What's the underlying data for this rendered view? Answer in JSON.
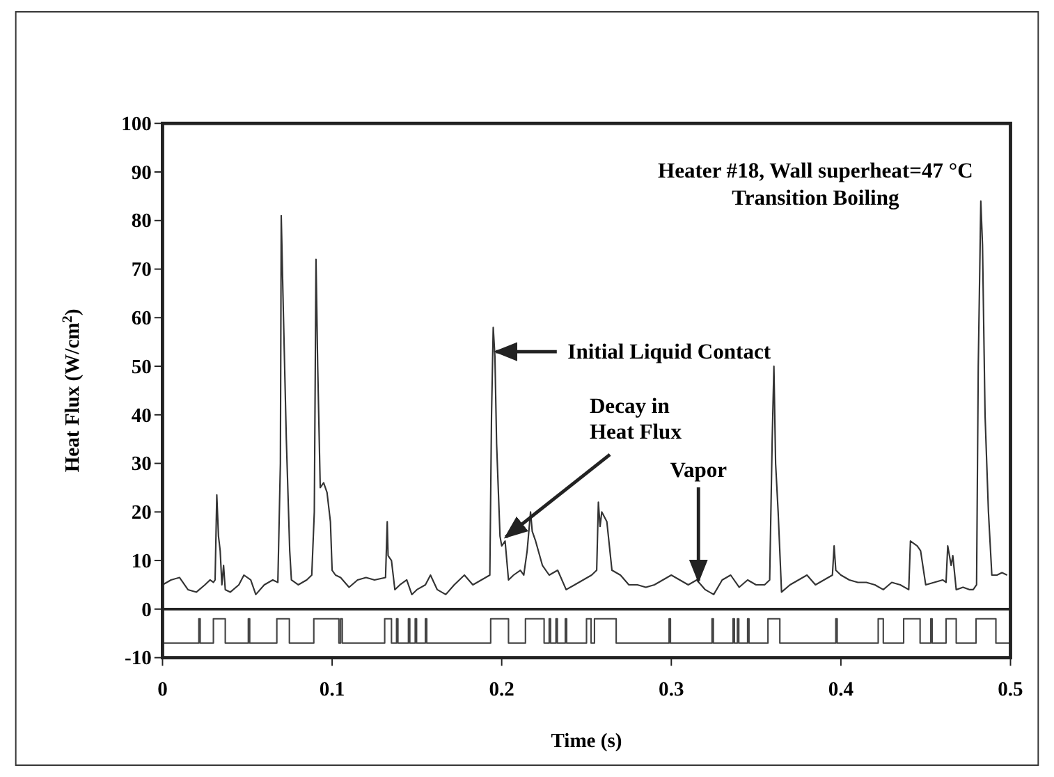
{
  "chart_data": {
    "type": "line",
    "xlabel": "Time (s)",
    "ylabel": "Heat Flux (W/cm$^{2}$)",
    "xlim": [
      0,
      0.5
    ],
    "xticks": [
      0,
      0.1,
      0.2,
      0.3,
      0.4,
      0.5
    ],
    "ylim": [
      -10,
      100
    ],
    "yticks": [
      -10,
      0,
      10,
      20,
      30,
      40,
      50,
      60,
      70,
      80,
      90,
      100
    ],
    "grid": false,
    "marker": "none",
    "line_style": "solid",
    "ref_lines": [
      {
        "axis": "y",
        "value": 0,
        "color": "#222222"
      }
    ],
    "annotations": [
      "Heater #18, Wall superheat=47 °C",
      "Transition Boiling",
      {
        "text": "Initial Liquid Contact",
        "x": 0.195,
        "y": 53
      },
      {
        "text": "Decay in Heat Flux",
        "x": 0.2,
        "y": 14
      },
      {
        "text": "Vapor",
        "x": 0.316,
        "y": 5
      }
    ],
    "series": [
      {
        "color": "#333333",
        "x": [
          0,
          0.005,
          0.01,
          0.015,
          0.02,
          0.025,
          0.028,
          0.03,
          0.031,
          0.032,
          0.033,
          0.034,
          0.035,
          0.036,
          0.037,
          0.04,
          0.045,
          0.048,
          0.052,
          0.055,
          0.06,
          0.065,
          0.068,
          0.0695,
          0.07,
          0.071,
          0.073,
          0.075,
          0.076,
          0.08,
          0.085,
          0.088,
          0.0895,
          0.0905,
          0.0915,
          0.093,
          0.095,
          0.097,
          0.099,
          0.1,
          0.102,
          0.105,
          0.11,
          0.115,
          0.12,
          0.125,
          0.1315,
          0.1325,
          0.133,
          0.135,
          0.137,
          0.14,
          0.144,
          0.147,
          0.15,
          0.155,
          0.158,
          0.162,
          0.167,
          0.172,
          0.178,
          0.183,
          0.188,
          0.193,
          0.194,
          0.195,
          0.196,
          0.197,
          0.199,
          0.2,
          0.202,
          0.204,
          0.207,
          0.211,
          0.213,
          0.215,
          0.217,
          0.218,
          0.22,
          0.224,
          0.228,
          0.233,
          0.238,
          0.243,
          0.248,
          0.253,
          0.256,
          0.257,
          0.258,
          0.259,
          0.262,
          0.265,
          0.27,
          0.275,
          0.28,
          0.285,
          0.29,
          0.295,
          0.3,
          0.305,
          0.31,
          0.315,
          0.32,
          0.325,
          0.33,
          0.335,
          0.34,
          0.345,
          0.35,
          0.355,
          0.358,
          0.3595,
          0.3605,
          0.3615,
          0.363,
          0.365,
          0.37,
          0.375,
          0.38,
          0.385,
          0.39,
          0.395,
          0.396,
          0.397,
          0.4,
          0.405,
          0.41,
          0.415,
          0.42,
          0.425,
          0.43,
          0.435,
          0.44,
          0.441,
          0.445,
          0.447,
          0.45,
          0.455,
          0.46,
          0.462,
          0.463,
          0.465,
          0.466,
          0.468,
          0.472,
          0.476,
          0.478,
          0.48,
          0.481,
          0.4825,
          0.4835,
          0.485,
          0.487,
          0.489,
          0.492,
          0.495,
          0.498
        ],
        "values": [
          5,
          6,
          6.5,
          4,
          3.5,
          5,
          6,
          5.5,
          6,
          23.5,
          15,
          12,
          5,
          9,
          4,
          3.5,
          5,
          7,
          6,
          3,
          5,
          6,
          5.5,
          30,
          81,
          65,
          35,
          12,
          6,
          5,
          6,
          7,
          20,
          72,
          50,
          25,
          26,
          24,
          18,
          8,
          7,
          6.5,
          4.5,
          6,
          6.5,
          6,
          6.5,
          18,
          11,
          10,
          4,
          5,
          6,
          3,
          4,
          5,
          7,
          4,
          3,
          5,
          7,
          5,
          6,
          7,
          40,
          58,
          52,
          34,
          15,
          13,
          14,
          6,
          7,
          8,
          7,
          12,
          20,
          16,
          14,
          9,
          7,
          8,
          4,
          5,
          6,
          7,
          8,
          22,
          17,
          20,
          18,
          8,
          7,
          5,
          5,
          4.5,
          5,
          6,
          7,
          6,
          5,
          6,
          4,
          3,
          6,
          7,
          4.5,
          6,
          5,
          5,
          6,
          35,
          50,
          30,
          20,
          3.5,
          5,
          6,
          7,
          5,
          6,
          7,
          13,
          8,
          7,
          6,
          5.5,
          5.5,
          5,
          4,
          5.5,
          5,
          4,
          14,
          13,
          12,
          5,
          5.5,
          6,
          5.5,
          13,
          9,
          11,
          4,
          4.5,
          4,
          4,
          5,
          50,
          84,
          75,
          40,
          20,
          7,
          7,
          7.5,
          7
        ]
      },
      {
        "type": "step",
        "color": "#444444",
        "x": [
          0,
          0.0214,
          0.0222,
          0.03,
          0.037,
          0.0506,
          0.0514,
          0.0674,
          0.0748,
          0.0892,
          0.104,
          0.105,
          0.106,
          0.131,
          0.135,
          0.138,
          0.1388,
          0.145,
          0.1458,
          0.149,
          0.1498,
          0.155,
          0.1558,
          0.1935,
          0.204,
          0.214,
          0.225,
          0.228,
          0.2288,
          0.232,
          0.2328,
          0.2375,
          0.2383,
          0.25,
          0.2527,
          0.2547,
          0.2675,
          0.2987,
          0.2995,
          0.324,
          0.3248,
          0.3364,
          0.3372,
          0.339,
          0.3398,
          0.345,
          0.3458,
          0.357,
          0.364,
          0.397,
          0.3978,
          0.422,
          0.425,
          0.437,
          0.4467,
          0.453,
          0.4538,
          0.462,
          0.468,
          0.4797,
          0.4914,
          0.5
        ],
        "values": [
          -7,
          -2,
          -7,
          -2,
          -7,
          -2,
          -7,
          -2,
          -7,
          -2,
          -7,
          -2,
          -7,
          -2,
          -7,
          -2,
          -7,
          -2,
          -7,
          -2,
          -7,
          -2,
          -7,
          -2,
          -7,
          -2,
          -7,
          -2,
          -7,
          -2,
          -7,
          -2,
          -7,
          -2,
          -7,
          -2,
          -7,
          -2,
          -7,
          -2,
          -7,
          -2,
          -7,
          -2,
          -7,
          -2,
          -7,
          -2,
          -7,
          -2,
          -7,
          -2,
          -7,
          -2,
          -7,
          -2,
          -7,
          -2,
          -7,
          -2,
          -7,
          -7
        ]
      }
    ]
  }
}
